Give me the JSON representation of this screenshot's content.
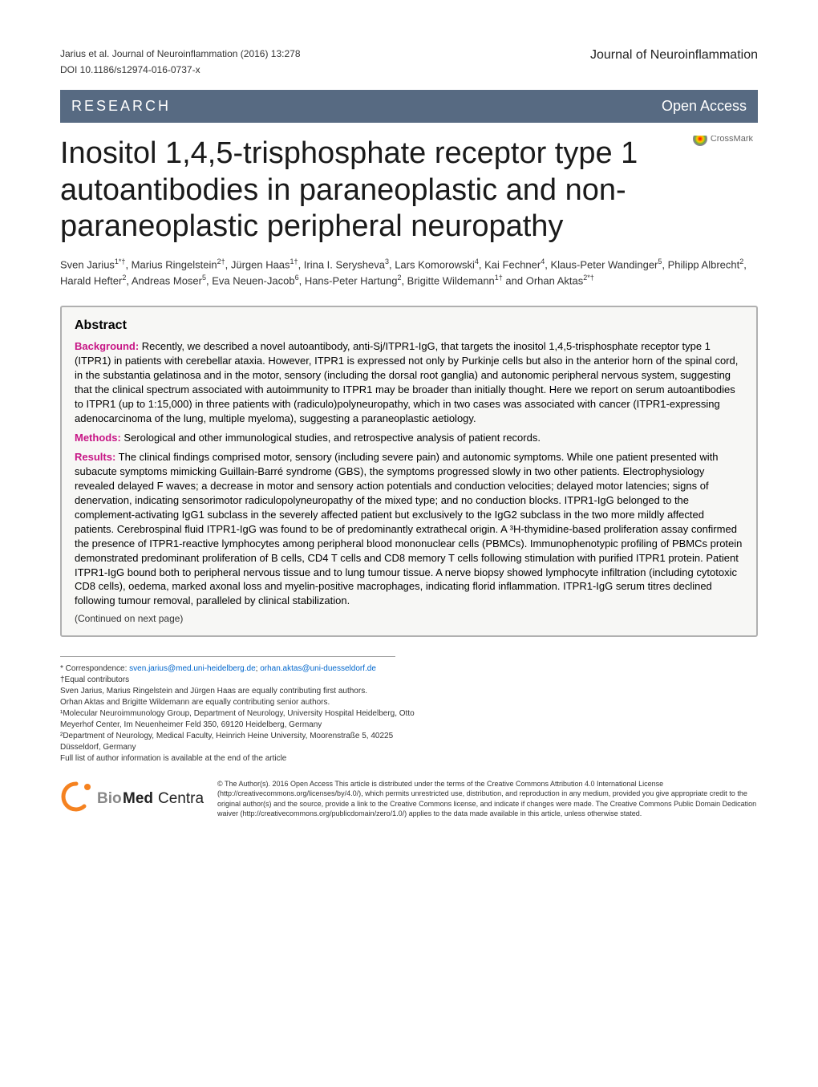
{
  "header": {
    "citation": "Jarius et al. Journal of Neuroinflammation (2016) 13:278",
    "doi": "DOI 10.1186/s12974-016-0737-x",
    "journal": "Journal of Neuroinflammation"
  },
  "banner": {
    "left": "RESEARCH",
    "right": "Open Access"
  },
  "crossmark_label": "CrossMark",
  "title": "Inositol 1,4,5-trisphosphate receptor type 1 autoantibodies in paraneoplastic and non-paraneoplastic peripheral neuropathy",
  "authors_html": "Sven Jarius<sup>1*†</sup>, Marius Ringelstein<sup>2†</sup>, Jürgen Haas<sup>1†</sup>, Irina I. Serysheva<sup>3</sup>, Lars Komorowski<sup>4</sup>, Kai Fechner<sup>4</sup>, Klaus-Peter Wandinger<sup>5</sup>, Philipp Albrecht<sup>2</sup>, Harald Hefter<sup>2</sup>, Andreas Moser<sup>5</sup>, Eva Neuen-Jacob<sup>6</sup>, Hans-Peter Hartung<sup>2</sup>, Brigitte Wildemann<sup>1†</sup> and Orhan Aktas<sup>2*†</sup>",
  "abstract": {
    "heading": "Abstract",
    "background_label": "Background:",
    "background_text": " Recently, we described a novel autoantibody, anti-Sj/ITPR1-IgG, that targets the inositol 1,4,5-trisphosphate receptor type 1 (ITPR1) in patients with cerebellar ataxia. However, ITPR1 is expressed not only by Purkinje cells but also in the anterior horn of the spinal cord, in the substantia gelatinosa and in the motor, sensory (including the dorsal root ganglia) and autonomic peripheral nervous system, suggesting that the clinical spectrum associated with autoimmunity to ITPR1 may be broader than initially thought. Here we report on serum autoantibodies to ITPR1 (up to 1:15,000) in three patients with (radiculo)polyneuropathy, which in two cases was associated with cancer (ITPR1-expressing adenocarcinoma of the lung, multiple myeloma), suggesting a paraneoplastic aetiology.",
    "methods_label": "Methods:",
    "methods_text": " Serological and other immunological studies, and retrospective analysis of patient records.",
    "results_label": "Results:",
    "results_text": " The clinical findings comprised motor, sensory (including severe pain) and autonomic symptoms. While one patient presented with subacute symptoms mimicking Guillain-Barré syndrome (GBS), the symptoms progressed slowly in two other patients. Electrophysiology revealed delayed F waves; a decrease in motor and sensory action potentials and conduction velocities; delayed motor latencies; signs of denervation, indicating sensorimotor radiculopolyneuropathy of the mixed type; and no conduction blocks. ITPR1-IgG belonged to the complement-activating IgG1 subclass in the severely affected patient but exclusively to the IgG2 subclass in the two more mildly affected patients. Cerebrospinal fluid ITPR1-IgG was found to be of predominantly extrathecal origin. A ³H-thymidine-based proliferation assay confirmed the presence of ITPR1-reactive lymphocytes among peripheral blood mononuclear cells (PBMCs). Immunophenotypic profiling of PBMCs protein demonstrated predominant proliferation of B cells, CD4 T cells and CD8 memory T cells following stimulation with purified ITPR1 protein. Patient ITPR1-IgG bound both to peripheral nervous tissue and to lung tumour tissue. A nerve biopsy showed lymphocyte infiltration (including cytotoxic CD8 cells), oedema, marked axonal loss and myelin-positive macrophages, indicating florid inflammation. ITPR1-IgG serum titres declined following tumour removal, paralleled by clinical stabilization.",
    "continued": "(Continued on next page)"
  },
  "correspondence": {
    "star": "* Correspondence: ",
    "email1": "sven.jarius@med.uni-heidelberg.de",
    "sep": "; ",
    "email2": "orhan.aktas@uni-duesseldorf.de",
    "equal": "†Equal contributors",
    "note1": "Sven Jarius, Marius Ringelstein and Jürgen Haas are equally contributing first authors.",
    "note2": "Orhan Aktas and Brigitte Wildemann are equally contributing senior authors.",
    "aff1": "¹Molecular Neuroimmunology Group, Department of Neurology, University Hospital Heidelberg, Otto Meyerhof Center, Im Neuenheimer Feld 350, 69120 Heidelberg, Germany",
    "aff2": "²Department of Neurology, Medical Faculty, Heinrich Heine University, Moorenstraße 5, 40225 Düsseldorf, Germany",
    "fulllist": "Full list of author information is available at the end of the article"
  },
  "footer": {
    "bmc_bio": "Bio",
    "bmc_med": "Med",
    "bmc_central": " Central",
    "license": "© The Author(s). 2016 Open Access This article is distributed under the terms of the Creative Commons Attribution 4.0 International License (http://creativecommons.org/licenses/by/4.0/), which permits unrestricted use, distribution, and reproduction in any medium, provided you give appropriate credit to the original author(s) and the source, provide a link to the Creative Commons license, and indicate if changes were made. The Creative Commons Public Domain Dedication waiver (http://creativecommons.org/publicdomain/zero/1.0/) applies to the data made available in this article, unless otherwise stated."
  },
  "colors": {
    "banner_bg": "#576a82",
    "abstract_bg": "#f7f7f5",
    "abstract_border": "#b0b0b0",
    "label_color": "#c71585",
    "bmc_orange": "#f58220"
  }
}
